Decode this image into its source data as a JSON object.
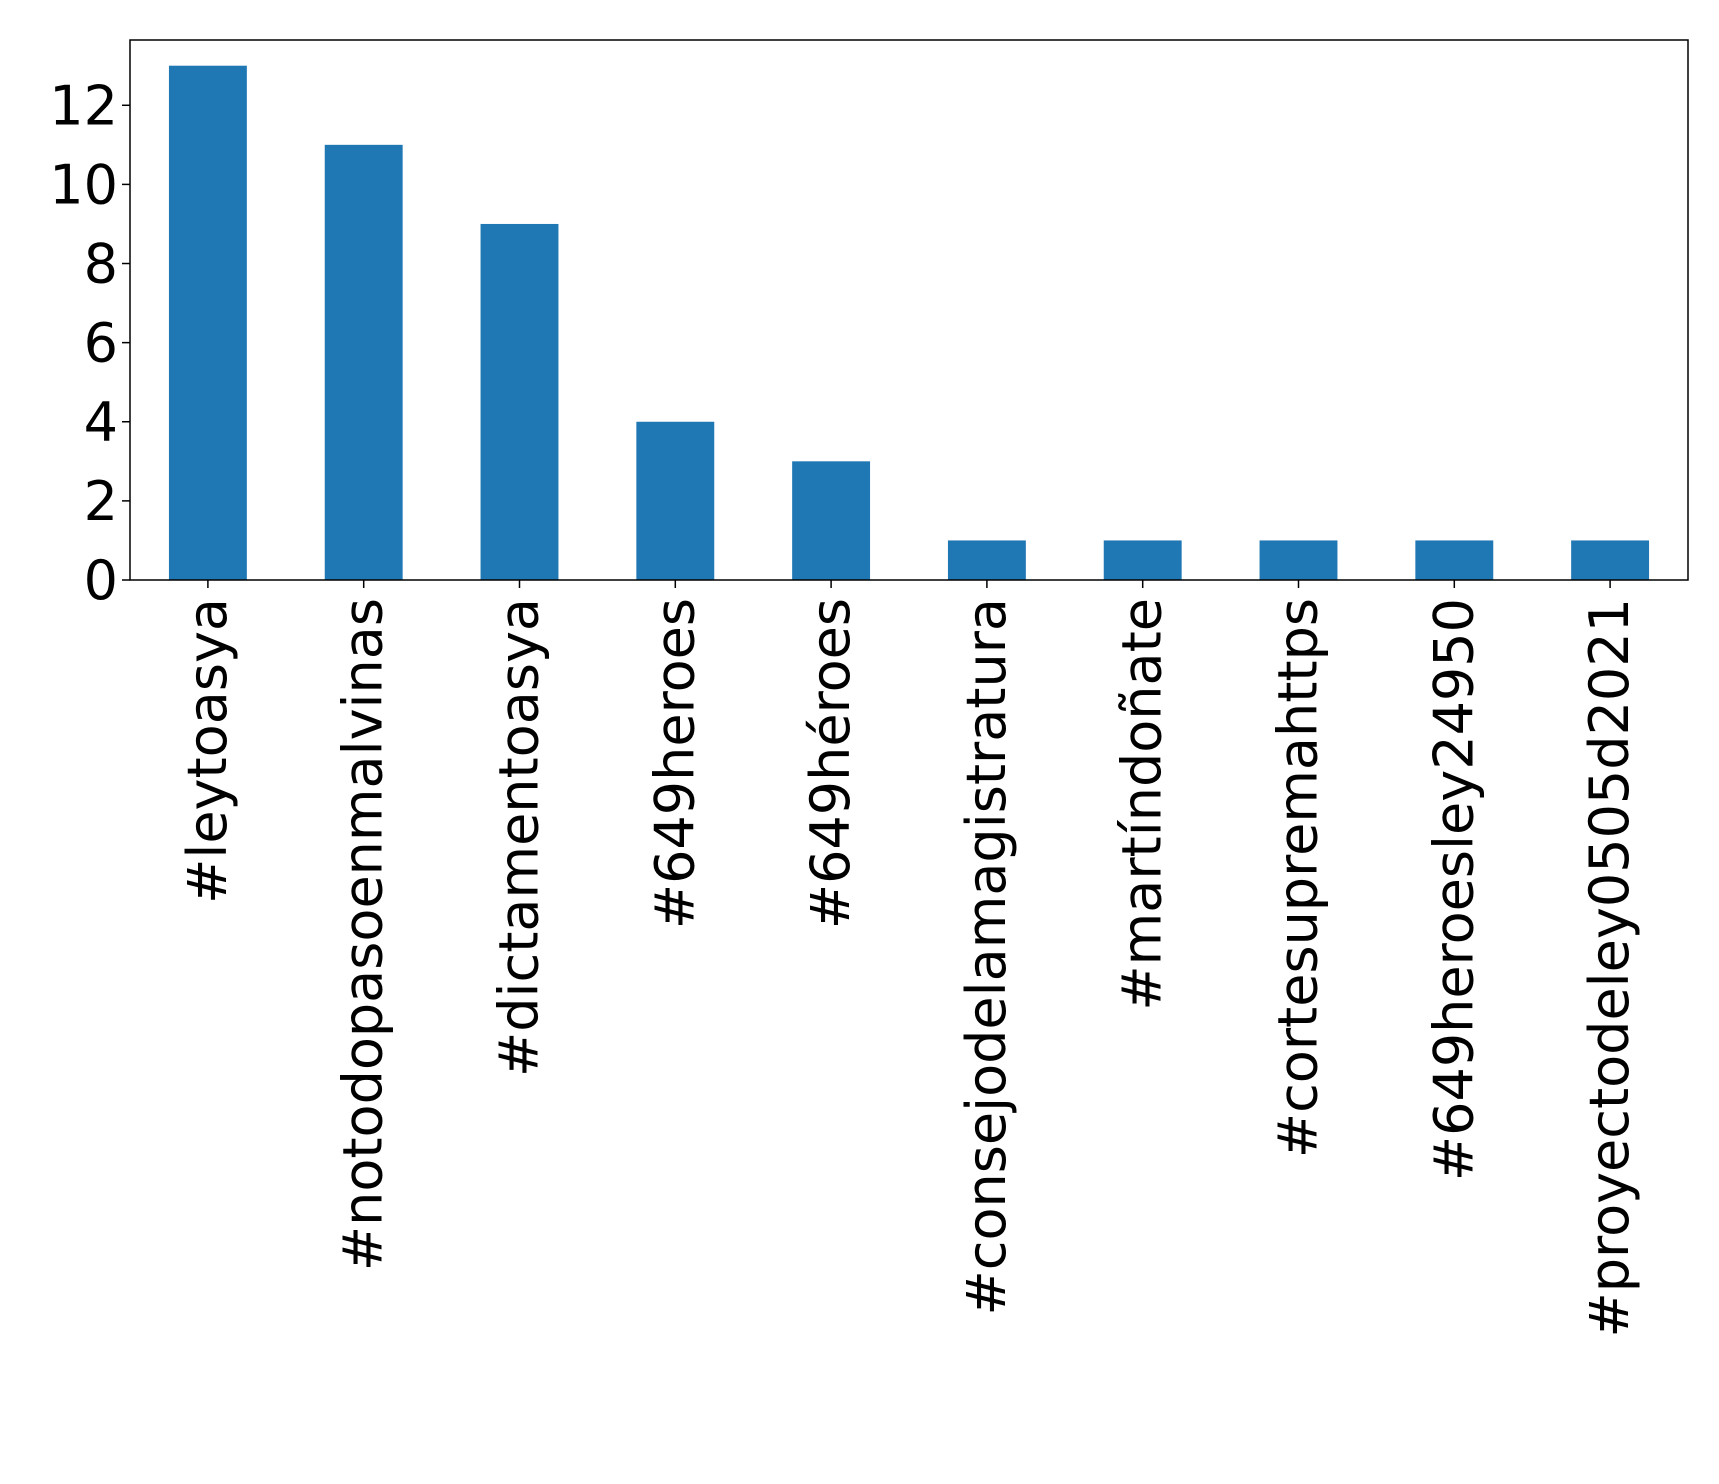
{
  "chart_data": {
    "type": "bar",
    "title": "",
    "xlabel": "",
    "ylabel": "",
    "categories": [
      "#leytoasya",
      "#notodopasoenmalvinas",
      "#dictamentoasya",
      "#649heroes",
      "#649héroes",
      "#consejodelamagistratura",
      "#martíndoñate",
      "#cortesupremahttps",
      "#649heroesley24950",
      "#proyectodeley0505d2021"
    ],
    "values": [
      13,
      11,
      9,
      4,
      3,
      1,
      1,
      1,
      1,
      1
    ],
    "ylim": [
      0,
      13.65
    ],
    "yticks": [
      0,
      2,
      4,
      6,
      8,
      10,
      12
    ],
    "grid": false,
    "legend": "none",
    "bar_color": "#1f77b4"
  }
}
